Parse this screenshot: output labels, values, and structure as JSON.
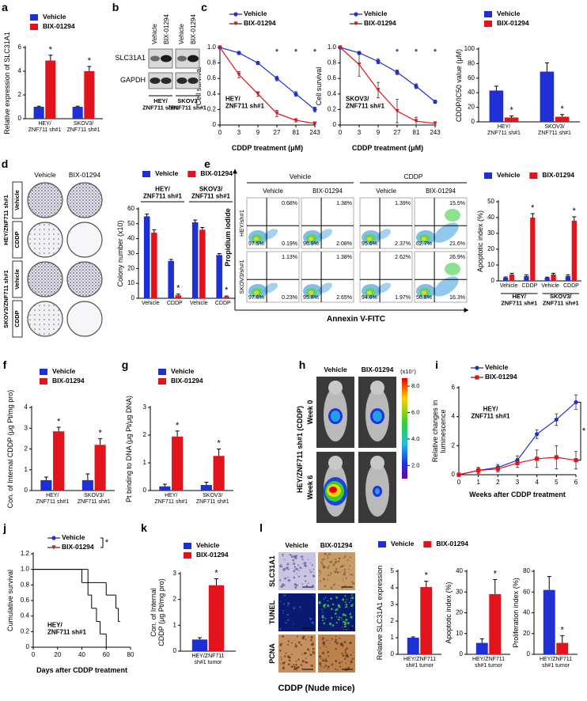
{
  "chart_data": [
    {
      "type": "bar",
      "label": "a",
      "y_label": "Relative expression of SLC31A1",
      "categories": [
        "HEY/\nZNF711 sh#1",
        "SKOV3/\nZNF711 sh#1"
      ],
      "series": [
        {
          "name": "Vehicle",
          "color": "#1f2fd6",
          "values": [
            1.0,
            1.0
          ],
          "errors": [
            0.05,
            0.05
          ]
        },
        {
          "name": "BIX-01294",
          "color": "#e3131b",
          "values": [
            4.9,
            4.0
          ],
          "errors": [
            0.45,
            0.4
          ]
        }
      ],
      "annotations": [
        "*",
        "*"
      ],
      "ylim": [
        0,
        6
      ],
      "yticks": [
        0,
        2,
        4,
        6
      ]
    },
    {
      "type": "line",
      "label": "c",
      "y_label": "Cell survival",
      "x_label": "CDDP treatment (μM)",
      "note": "HEY/\nZNF711 sh#1",
      "categories": [
        "0",
        "3",
        "9",
        "27",
        "81",
        "243"
      ],
      "series": [
        {
          "name": "Vehicle",
          "color": "#1f2fd6",
          "marker": "circle",
          "values": [
            1,
            0.93,
            0.8,
            0.6,
            0.4,
            0.2
          ],
          "errors": [
            0,
            0.02,
            0.02,
            0.03,
            0.03,
            0.03
          ]
        },
        {
          "name": "BIX-01294",
          "color": "#e3131b",
          "marker": "triangle",
          "values": [
            1,
            0.65,
            0.4,
            0.15,
            0.06,
            0.02
          ],
          "errors": [
            0,
            0.04,
            0.03,
            0.04,
            0.02,
            0.01
          ]
        }
      ],
      "annotations": [
        null,
        null,
        null,
        "*",
        "*",
        "*"
      ],
      "ylim": [
        0,
        1
      ],
      "yticks": [
        0,
        0.2,
        0.4,
        0.6,
        0.8,
        {
          "value": 1,
          "label": "1.0"
        }
      ]
    },
    {
      "type": "line",
      "y_label": "Cell survival",
      "x_label": "CDDP treatment (μM)",
      "note": "SKOV3/\nZNF711 sh#1",
      "categories": [
        "0",
        "3",
        "9",
        "27",
        "81",
        "243"
      ],
      "series": [
        {
          "name": "Vehicle",
          "color": "#1f2fd6",
          "marker": "circle",
          "values": [
            1,
            0.93,
            0.82,
            0.68,
            0.5,
            0.3
          ],
          "errors": [
            0,
            0.02,
            0.03,
            0.03,
            0.03,
            0.02
          ]
        },
        {
          "name": "BIX-01294",
          "color": "#e3131b",
          "marker": "triangle",
          "values": [
            1,
            0.78,
            0.45,
            0.18,
            0.05,
            0.02
          ],
          "errors": [
            0,
            0.15,
            0.1,
            0.15,
            0.05,
            0.02
          ]
        }
      ],
      "annotations": [
        null,
        null,
        null,
        "*",
        "*",
        "*"
      ],
      "ylim": [
        0,
        1
      ],
      "yticks": [
        0,
        0.2,
        0.4,
        0.6,
        0.8,
        {
          "value": 1,
          "label": "1.0"
        }
      ]
    },
    {
      "type": "bar",
      "y_label": "CDDP/IC50 value (μM)",
      "categories": [
        "HEY/\nZNF711 sh#1",
        "SKOV3/\nZNF711 sh#1"
      ],
      "series": [
        {
          "name": "Vehicle",
          "color": "#1f2fd6",
          "values": [
            43,
            69
          ],
          "errors": [
            6,
            12
          ]
        },
        {
          "name": "BIX-01294",
          "color": "#e3131b",
          "values": [
            6,
            7
          ],
          "errors": [
            2,
            3
          ]
        }
      ],
      "annotations": [
        "*",
        "*"
      ],
      "ylim": [
        0,
        100
      ],
      "yticks": [
        0,
        20,
        40,
        60,
        80,
        100
      ]
    },
    {
      "type": "bar",
      "label": "d",
      "y_label": "Colony number (x10)",
      "categories": [
        "Vehicle",
        "CDDP",
        "Vehicle",
        "CDDP"
      ],
      "groups": [
        "HEY/\nZNF711 sh#1",
        "SKOV3/\nZNF711 sh#1"
      ],
      "series": [
        {
          "name": "Vehicle",
          "color": "#1f2fd6",
          "values": [
            55,
            25,
            51,
            29
          ],
          "errors": [
            1.5,
            1,
            1.5,
            1
          ]
        },
        {
          "name": "BIX-01294",
          "color": "#e3131b",
          "values": [
            44,
            2,
            46,
            1
          ],
          "errors": [
            2,
            0.8,
            1.5,
            0.5
          ]
        }
      ],
      "annotations": [
        null,
        "*",
        null,
        "*"
      ],
      "ylim": [
        0,
        60
      ],
      "yticks": [
        0,
        10,
        20,
        30,
        40,
        50,
        60
      ]
    },
    {
      "type": "bar",
      "label": "e",
      "y_label": "Apoptotic index (%)",
      "categories": [
        "Vehicle",
        "CDDP",
        "Vehicle",
        "CDDP"
      ],
      "groups": [
        "HEY/\nZNF711 sh#1",
        "SKOV3/\nZNF711 sh#1"
      ],
      "series": [
        {
          "name": "Vehicle",
          "color": "#1f2fd6",
          "values": [
            2,
            3,
            2,
            3
          ],
          "errors": [
            0.5,
            0.8,
            0.4,
            0.8
          ]
        },
        {
          "name": "BIX-01294",
          "color": "#e3131b",
          "values": [
            4,
            40,
            4,
            38
          ],
          "errors": [
            0.8,
            2.5,
            0.8,
            2.5
          ]
        }
      ],
      "annotations": [
        null,
        "*",
        null,
        "*"
      ],
      "ylim": [
        0,
        50
      ],
      "yticks": [
        0,
        10,
        20,
        30,
        40,
        50
      ]
    },
    {
      "type": "bar",
      "label": "f",
      "y_label": "Con. of Internal CDDP (μg Pt/mg pro)",
      "categories": [
        "HEY/\nZNF711 sh#1",
        "SKOV3/\nZNF711 sh#1"
      ],
      "series": [
        {
          "name": "Vehicle",
          "color": "#1f2fd6",
          "values": [
            0.5,
            0.5
          ],
          "errors": [
            0.15,
            0.3
          ]
        },
        {
          "name": "BIX-01294",
          "color": "#e3131b",
          "values": [
            2.85,
            2.2
          ],
          "errors": [
            0.2,
            0.3
          ]
        }
      ],
      "annotations": [
        "*",
        "*"
      ],
      "ylim": [
        0,
        4
      ],
      "yticks": [
        0,
        1,
        2,
        3,
        4
      ]
    },
    {
      "type": "bar",
      "label": "g",
      "y_label": "Pt binding to DNA (μg Pt/μg DNA)",
      "categories": [
        "HEY/\nZNF711 sh#1",
        "SKOV3/\nZNF711 sh#1"
      ],
      "series": [
        {
          "name": "Vehicle",
          "color": "#1f2fd6",
          "values": [
            0.15,
            0.2
          ],
          "errors": [
            0.08,
            0.1
          ]
        },
        {
          "name": "BIX-01294",
          "color": "#e3131b",
          "values": [
            1.95,
            1.25
          ],
          "errors": [
            0.2,
            0.25
          ]
        }
      ],
      "annotations": [
        "*",
        "*"
      ],
      "ylim": [
        0,
        3
      ],
      "yticks": [
        0,
        1,
        2,
        3
      ]
    },
    {
      "type": "line",
      "label": "i",
      "y_label": "Relative changes in\nluminescence",
      "x_label": "Weeks after CDDP treatment",
      "note": "HEY/\nZNF711 sh#1",
      "categories": [
        "0",
        "1",
        "2",
        "3",
        "4",
        "5",
        "6"
      ],
      "series": [
        {
          "name": "Vehicle",
          "color": "#1f2fd6",
          "marker": "circle",
          "values": [
            0,
            0.3,
            0.5,
            1.0,
            2.8,
            3.8,
            5.0
          ],
          "errors": [
            0,
            0.2,
            0.2,
            0.3,
            0.3,
            0.4,
            0.5
          ]
        },
        {
          "name": "BIX-01294",
          "color": "#e3131b",
          "marker": "square",
          "values": [
            0,
            0.3,
            0.4,
            0.8,
            1.1,
            1.2,
            1.0
          ],
          "errors": [
            0,
            0.2,
            0.2,
            0.3,
            0.6,
            0.8,
            0.6
          ]
        }
      ],
      "annotation": "*",
      "ylim": [
        0,
        6
      ],
      "yticks": [
        0,
        2,
        4,
        6
      ]
    },
    {
      "type": "step",
      "label": "j",
      "y_label": "Cumulative survival",
      "x_label": "Days after CDDP treatment",
      "note": "HEY/\nZNF711 sh#1",
      "series": [
        {
          "name": "Vehicle",
          "color": "#1f2fd6",
          "marker": "circle",
          "x": [
            0,
            40,
            45,
            48,
            52,
            55,
            60
          ],
          "values": [
            1,
            0.83,
            0.67,
            0.5,
            0.33,
            0.17,
            0
          ]
        },
        {
          "name": "BIX-01294",
          "color": "#e3131b",
          "marker": "triangle",
          "x": [
            0,
            45,
            60,
            68,
            70
          ],
          "values": [
            1,
            0.83,
            0.67,
            0.5,
            0.33
          ]
        }
      ],
      "annotation": "*",
      "xlim": [
        0,
        80
      ],
      "xticks": [
        0,
        20,
        40,
        60,
        80
      ],
      "ylim": [
        0,
        1.2
      ],
      "yticks": [
        0,
        0.2,
        0.4,
        0.6,
        0.8,
        {
          "value": 1,
          "label": "1.0"
        },
        1.2
      ]
    },
    {
      "type": "bar",
      "label": "k",
      "y_label": "Con. of Internal\nCDDP (μg Pt/mg pro)",
      "categories": [
        "HEY/ZNF711\nsh#1 tumor"
      ],
      "series": [
        {
          "name": "Vehicle",
          "color": "#1f2fd6",
          "values": [
            0.45
          ],
          "errors": [
            0.07
          ]
        },
        {
          "name": "BIX-01294",
          "color": "#e3131b",
          "values": [
            2.55
          ],
          "errors": [
            0.25
          ]
        }
      ],
      "annotations": [
        "*"
      ],
      "ylim": [
        0,
        3
      ],
      "yticks": [
        0,
        1,
        2,
        3
      ]
    },
    {
      "type": "bar",
      "label": "l",
      "y_label": "Relative SLC31A1 expression",
      "categories": [
        "HEY/ZNF711\nsh#1 tumor"
      ],
      "series": [
        {
          "name": "Vehicle",
          "color": "#1f2fd6",
          "values": [
            1.0
          ],
          "errors": [
            0.05
          ]
        },
        {
          "name": "BIX-01294",
          "color": "#e3131b",
          "values": [
            4.05
          ],
          "errors": [
            0.35
          ]
        }
      ],
      "annotations": [
        "*"
      ],
      "ylim": [
        0,
        5
      ],
      "yticks": [
        0,
        1,
        2,
        3,
        4,
        5
      ]
    },
    {
      "type": "bar",
      "y_label": "Apoptotic index (%)",
      "categories": [
        "HEY/ZNF711\nsh#1 tumor"
      ],
      "series": [
        {
          "color": "#1f2fd6",
          "values": [
            5.5
          ],
          "errors": [
            2
          ]
        },
        {
          "color": "#e3131b",
          "values": [
            29
          ],
          "errors": [
            7
          ]
        }
      ],
      "annotations": [
        "*"
      ],
      "ylim": [
        0,
        40
      ],
      "yticks": [
        0,
        10,
        20,
        30,
        40
      ]
    },
    {
      "type": "bar",
      "y_label": "Proliferation index (%)",
      "categories": [
        "HEY/ZNF711\nsh#1 tumor"
      ],
      "series": [
        {
          "color": "#1f2fd6",
          "values": [
            62
          ],
          "errors": [
            13
          ]
        },
        {
          "color": "#e3131b",
          "values": [
            11
          ],
          "errors": [
            7
          ]
        }
      ],
      "annotations": [
        "*"
      ],
      "ylim": [
        0,
        80
      ],
      "yticks": [
        0,
        20,
        40,
        60,
        80
      ]
    }
  ],
  "blot": {
    "label": "b",
    "columns": [
      "Vehicle",
      "BIX-01294"
    ],
    "rows": [
      "SLC31A1",
      "GAPDH"
    ],
    "lines": [
      "HEY/\nZNF711 sh#1",
      "SKOV3\n/ZNF711 sh#1"
    ]
  },
  "colony": {
    "columns": [
      "Vehicle",
      "BIX-01294"
    ],
    "lines": [
      "HEY/ZNF711 sh#1",
      "SKOV3/ZNF711 sh#1"
    ],
    "treatments": [
      "Vehicle",
      "CDDP"
    ]
  },
  "flow": {
    "y_label": "Propidium iodide",
    "x_label": "Annexin V-FITC",
    "treatments": [
      "Vehicle",
      "CDDP"
    ],
    "columns": [
      "Vehicle",
      "BIX-01294"
    ],
    "rows": [
      "HEY/sh#1",
      "SKOV3/sh#1"
    ],
    "quadrants": [
      [
        [
          "0.68%",
          "97.5%",
          "0.19%"
        ],
        [
          "1.38%",
          "96.9%",
          "2.08%"
        ],
        [
          "1.39%",
          "95.6%",
          "2.37%"
        ],
        [
          "15.5%",
          "62.7%",
          "21.6%"
        ]
      ],
      [
        [
          "1.13%",
          "97.6%",
          "0.23%"
        ],
        [
          "1.38%",
          "95.8%",
          "2.65%"
        ],
        [
          "2.62%",
          "94.6%",
          "1.97%"
        ],
        [
          "26.9%",
          "56.8%",
          "16.3%"
        ]
      ]
    ]
  },
  "imaging": {
    "label": "h",
    "columns": [
      "Vehicle",
      "BIX-01294"
    ],
    "rows": [
      "Week 0",
      "Week 6"
    ],
    "side": "HEY/ZNF711 sh#1 (CDDP)",
    "scale_unit": "(x10⁷)",
    "scale_lim": [
      1,
      8.6
    ],
    "scale_ticks": [
      {
        "value": 8,
        "label": "8.0"
      },
      {
        "value": 6,
        "label": "6.0"
      },
      {
        "value": 4,
        "label": "4.0"
      },
      {
        "value": 2,
        "label": "2.0"
      }
    ]
  },
  "ihc": {
    "columns": [
      "Vehicle",
      "BIX-01294"
    ],
    "rows": [
      "SLC31A1",
      "TUNEL",
      "PCNA"
    ],
    "x_label": "CDDP (Nude mice)"
  }
}
